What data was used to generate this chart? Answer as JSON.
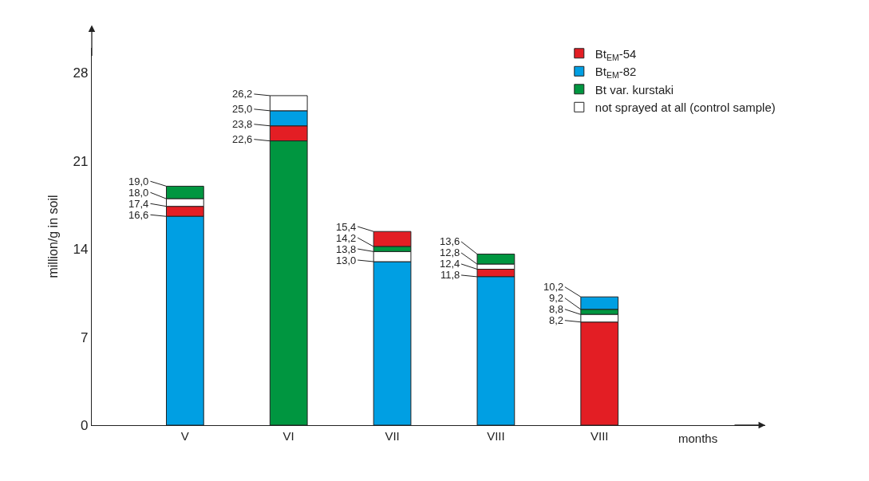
{
  "chart_data": {
    "type": "bar",
    "ylabel": "million/g in soil",
    "xlabel": "months",
    "categories": [
      "V",
      "VI",
      "VII",
      "VIII",
      "VIII"
    ],
    "series": [
      {
        "name": "Bt$_{EM}$-54",
        "color": "#e31e24",
        "values": [
          0.8,
          1.2,
          1.2,
          0.6,
          8.2
        ],
        "base": [
          16.6,
          22.6,
          14.2,
          11.8,
          0
        ],
        "value_labels": [
          "17,4",
          "23,8",
          "15,4",
          "12,4",
          "8,2"
        ]
      },
      {
        "name": "Bt$_{EM}$-82",
        "color": "#009fe3",
        "values": [
          16.6,
          1.2,
          13.0,
          11.8,
          1.0
        ],
        "base": [
          0,
          23.8,
          0,
          0,
          9.2
        ],
        "value_labels": [
          "16,6",
          "25,0",
          "13,0",
          "11,8",
          "10,2"
        ]
      },
      {
        "name": "Bt var. kurstaki",
        "color": "#009640",
        "values": [
          1.0,
          22.6,
          0.4,
          0.8,
          0.4
        ],
        "base": [
          18.0,
          0,
          13.8,
          12.8,
          8.8
        ],
        "value_labels": [
          "19,0",
          "22,6",
          "14,2",
          "13,6",
          "9,2"
        ]
      },
      {
        "name": "not sprayed at all (control sample)",
        "color": "#ffffff",
        "values": [
          0.6,
          1.2,
          0.8,
          0.4,
          0.6
        ],
        "base": [
          17.4,
          25.0,
          13.0,
          12.4,
          8.2
        ],
        "value_labels": [
          "18,0",
          "26,2",
          "13,8",
          "12,8",
          "8,8"
        ]
      }
    ],
    "ylim": [
      0,
      30
    ],
    "yticks": [
      0,
      7,
      14,
      21,
      28
    ],
    "grid": false,
    "legend": "top right"
  }
}
